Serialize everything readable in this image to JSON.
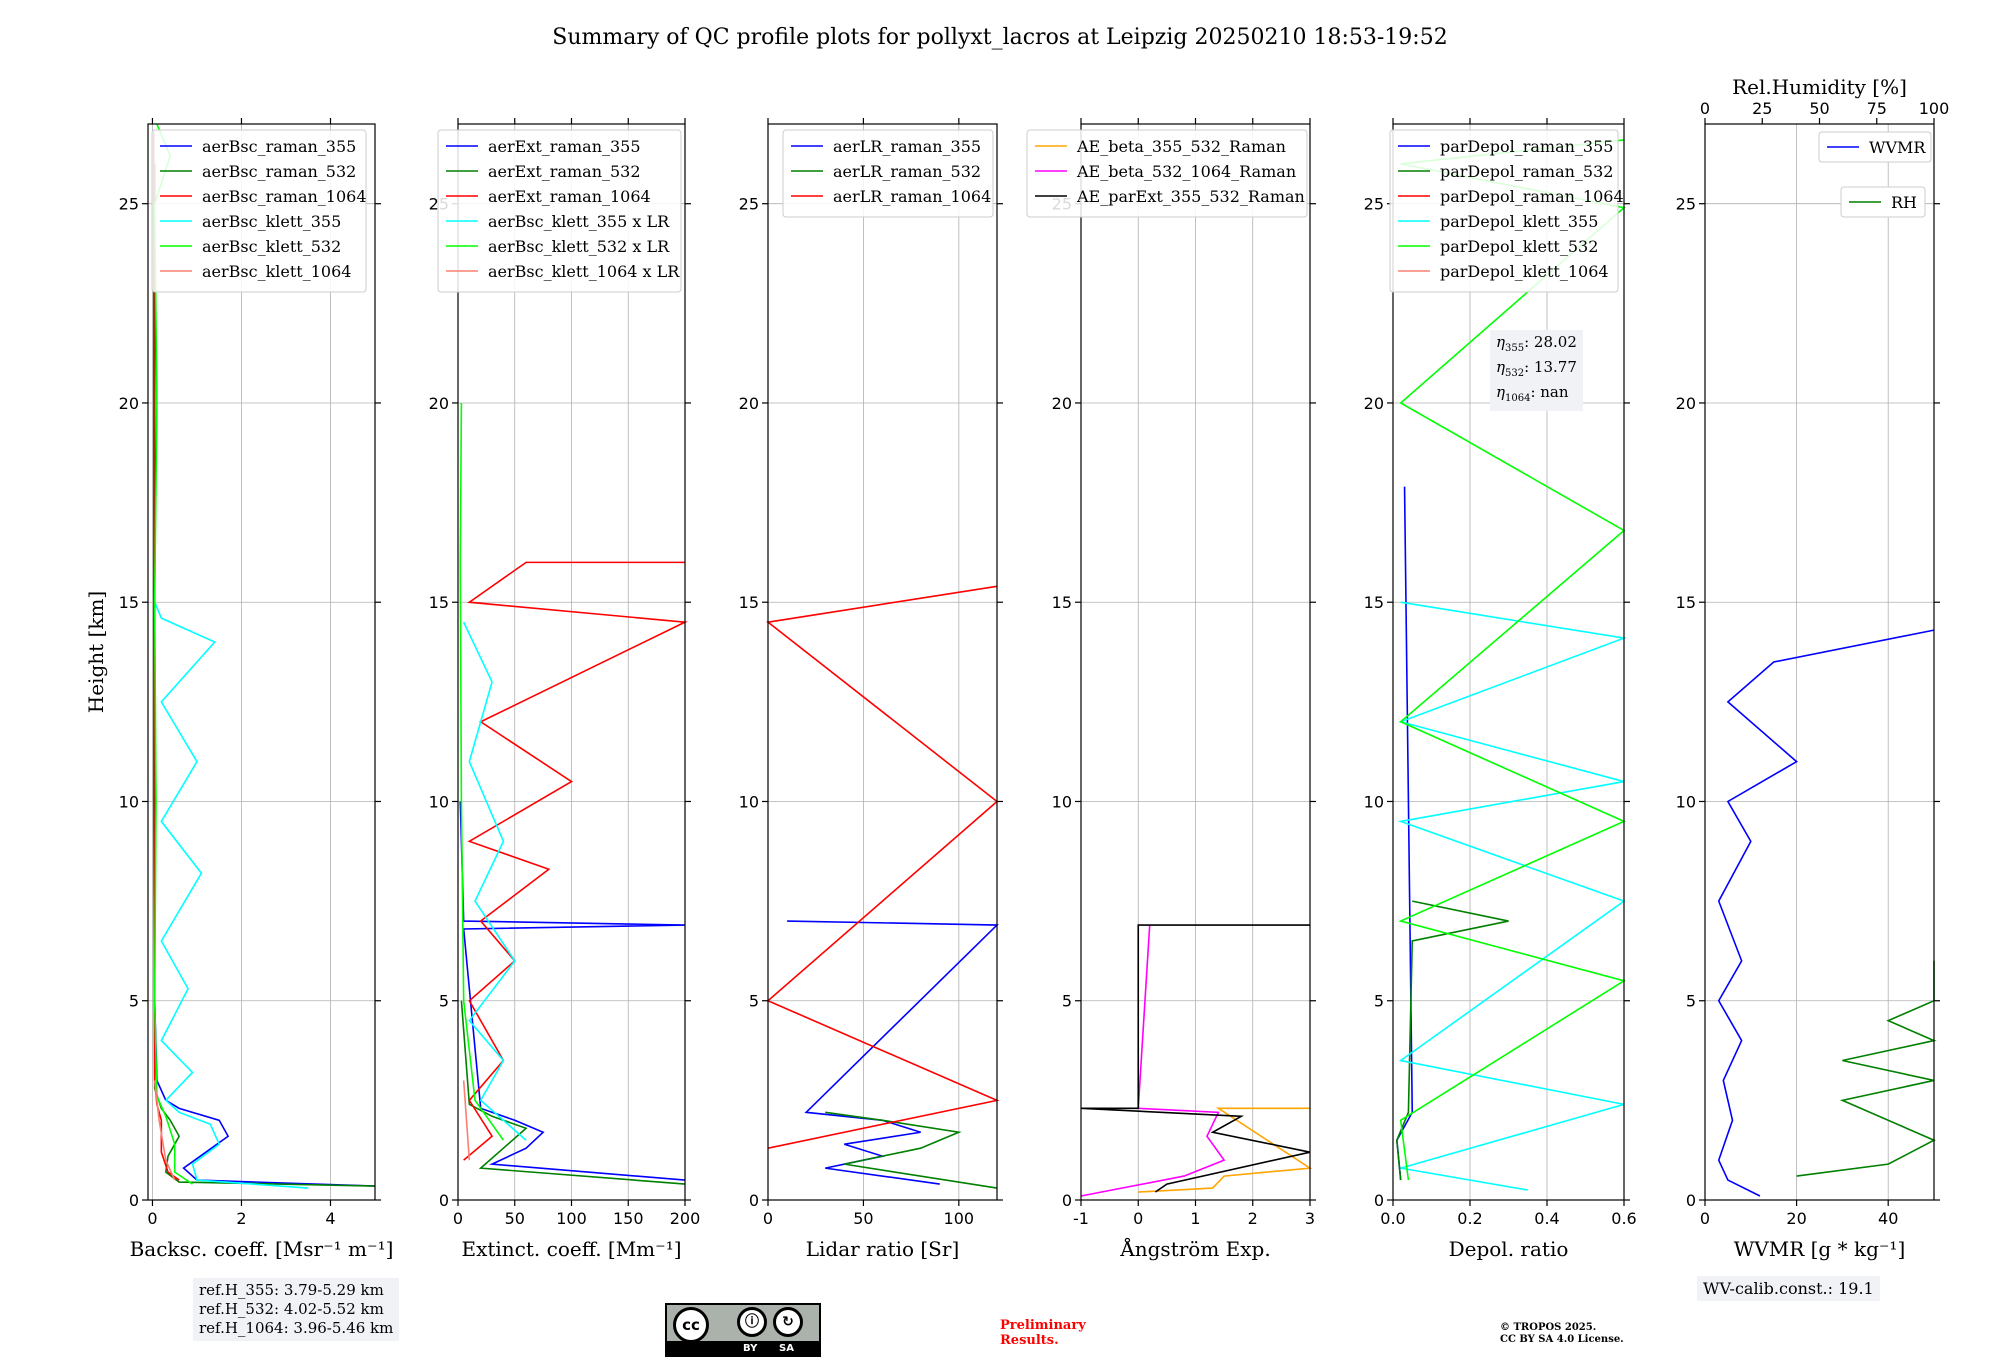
{
  "title": "Summary of QC profile plots for pollyxt_lacros at Leipzig 20250210 18:53-19:52",
  "ylabel": "Height [km]",
  "ref_heights": [
    "ref.H_355: 3.79-5.29 km",
    "ref.H_532: 4.02-5.52 km",
    "ref.H_1064: 3.96-5.46 km"
  ],
  "eta_box": [
    {
      "sym": "η",
      "sub": "355",
      "val": ": 28.02"
    },
    {
      "sym": "η",
      "sub": "532",
      "val": ": 13.77"
    },
    {
      "sym": "η",
      "sub": "1064",
      "val": ": nan"
    }
  ],
  "wv_calib": "WV-calib.const.: 19.1",
  "preliminary": [
    "Preliminary",
    "Results."
  ],
  "copyright": [
    "© TROPOS 2025.",
    "CC BY SA 4.0 License."
  ],
  "license_badge": {
    "by": "BY",
    "sa": "SA"
  },
  "colors": {
    "blue": "#0000ff",
    "green": "#008000",
    "red": "#ff0000",
    "cyan": "#00ffff",
    "lime": "#00ff00",
    "salmon": "#fa8072",
    "orange": "#ffa500",
    "magenta": "#ff00ff",
    "black": "#000000",
    "preliminary": "#ff0000"
  },
  "chart_data": [
    {
      "type": "line",
      "xlabel": "Backsc. coeff. [Msr⁻¹ m⁻¹]",
      "ylabel": "Height [km]",
      "xlim": [
        -0.1,
        5
      ],
      "ylim": [
        0,
        27
      ],
      "xticks": [
        0,
        2,
        4
      ],
      "yticks": [
        0,
        5,
        10,
        15,
        20,
        25
      ],
      "grid": true,
      "legend_placement": "top-right",
      "series": [
        {
          "name": "aerBsc_raman_355",
          "color": "#0000ff",
          "x": [
            5,
            1.0,
            0.7,
            1.2,
            1.7,
            1.5,
            0.6,
            0.3,
            0.1,
            0.05,
            0.05,
            0.05,
            0.05
          ],
          "y": [
            0.35,
            0.5,
            0.8,
            1.2,
            1.6,
            2.0,
            2.3,
            2.5,
            3.0,
            5.0,
            10.0,
            20.0,
            26.0
          ]
        },
        {
          "name": "aerBsc_raman_532",
          "color": "#008000",
          "x": [
            5,
            0.6,
            0.3,
            0.35,
            0.6,
            0.4,
            0.2,
            0.05,
            0.04,
            0.04,
            0.04
          ],
          "y": [
            0.35,
            0.45,
            0.7,
            1.1,
            1.6,
            2.0,
            2.3,
            2.8,
            8.0,
            20.0,
            26.0
          ]
        },
        {
          "name": "aerBsc_raman_1064",
          "color": "#ff0000",
          "x": [
            0.6,
            0.35,
            0.2,
            0.2,
            0.1,
            0.05,
            0.03,
            0.03
          ],
          "y": [
            0.5,
            0.7,
            1.2,
            2.0,
            2.4,
            3.0,
            10.0,
            26.8
          ]
        },
        {
          "name": "aerBsc_klett_355",
          "color": "#00ffff",
          "x": [
            3.5,
            1.0,
            0.9,
            1.5,
            1.3,
            0.6,
            0.3,
            0.9,
            0.2,
            0.8,
            0.2,
            1.1,
            0.2,
            1.0,
            0.2,
            1.4,
            0.2,
            0.05
          ],
          "y": [
            0.3,
            0.5,
            0.9,
            1.4,
            1.9,
            2.2,
            2.5,
            3.2,
            4.0,
            5.3,
            6.5,
            8.2,
            9.5,
            11.0,
            12.5,
            14.0,
            14.6,
            15.0
          ]
        },
        {
          "name": "aerBsc_klett_532",
          "color": "#00ff00",
          "x": [
            0.9,
            0.5,
            0.5,
            0.3,
            0.1,
            0.05,
            0.08,
            0.05,
            0.1,
            0.05,
            0.4,
            0.1
          ],
          "y": [
            0.4,
            0.7,
            1.4,
            2.1,
            2.6,
            5.0,
            10.0,
            15.0,
            20.0,
            25.0,
            26.2,
            27.0
          ]
        },
        {
          "name": "aerBsc_klett_1064",
          "color": "#fa8072",
          "x": [
            0.5,
            0.3,
            0.15,
            0.05
          ],
          "y": [
            0.5,
            1.0,
            2.0,
            3.0
          ]
        }
      ]
    },
    {
      "type": "line",
      "xlabel": "Extinct. coeff. [Mm⁻¹]",
      "xlim": [
        0,
        200
      ],
      "ylim": [
        0,
        27
      ],
      "xticks": [
        0,
        50,
        100,
        150,
        200
      ],
      "yticks": [
        0,
        5,
        10,
        15,
        20,
        25
      ],
      "grid": true,
      "legend_placement": "top-right",
      "series": [
        {
          "name": "aerExt_raman_355",
          "color": "#0000ff",
          "x": [
            200,
            30,
            60,
            75,
            50,
            20,
            5,
            200,
            5,
            2
          ],
          "y": [
            0.5,
            0.9,
            1.3,
            1.7,
            2.0,
            2.3,
            6.8,
            6.9,
            7.0,
            10.0
          ]
        },
        {
          "name": "aerExt_raman_532",
          "color": "#008000",
          "x": [
            200,
            20,
            40,
            60,
            30,
            10,
            3
          ],
          "y": [
            0.4,
            0.8,
            1.3,
            1.8,
            2.1,
            2.4,
            5.0
          ]
        },
        {
          "name": "aerExt_raman_1064",
          "color": "#ff0000",
          "x": [
            5,
            30,
            10,
            40,
            10,
            50,
            20,
            80,
            10,
            100,
            20,
            200,
            10,
            60,
            200
          ],
          "y": [
            1.0,
            1.6,
            2.5,
            3.5,
            5.0,
            6.0,
            7.0,
            8.3,
            9.0,
            10.5,
            12.0,
            14.5,
            15.0,
            16.0,
            16.0
          ]
        },
        {
          "name": "aerBsc_klett_355 x LR",
          "color": "#00ffff",
          "x": [
            60,
            20,
            40,
            10,
            50,
            15,
            40,
            10,
            30,
            5
          ],
          "y": [
            1.5,
            2.5,
            3.5,
            4.5,
            6.0,
            7.5,
            9.0,
            11.0,
            13.0,
            14.5
          ]
        },
        {
          "name": "aerBsc_klett_532 x LR",
          "color": "#00ff00",
          "x": [
            40,
            15,
            5,
            3,
            2,
            3
          ],
          "y": [
            1.5,
            2.5,
            5.0,
            10.0,
            16.0,
            20.0
          ]
        },
        {
          "name": "aerBsc_klett_1064 x LR",
          "color": "#fa8072",
          "x": [
            10,
            5
          ],
          "y": [
            1.0,
            3.0
          ]
        }
      ]
    },
    {
      "type": "line",
      "xlabel": "Lidar ratio [Sr]",
      "xlim": [
        0,
        120
      ],
      "ylim": [
        0,
        27
      ],
      "xticks": [
        0,
        50,
        100
      ],
      "yticks": [
        0,
        5,
        10,
        15,
        20,
        25
      ],
      "grid": true,
      "legend_placement": "top-right",
      "series": [
        {
          "name": "aerLR_raman_355",
          "color": "#0000ff",
          "x": [
            90,
            30,
            60,
            40,
            80,
            60,
            20,
            120,
            10
          ],
          "y": [
            0.4,
            0.8,
            1.1,
            1.4,
            1.7,
            2.0,
            2.2,
            6.9,
            7.0
          ]
        },
        {
          "name": "aerLR_raman_532",
          "color": "#008000",
          "x": [
            120,
            40,
            80,
            100,
            60,
            30
          ],
          "y": [
            0.3,
            0.9,
            1.3,
            1.7,
            2.0,
            2.2
          ]
        },
        {
          "name": "aerLR_raman_1064",
          "color": "#ff0000",
          "x": [
            0,
            120,
            0,
            120,
            0,
            120
          ],
          "y": [
            1.3,
            2.5,
            5.0,
            10.0,
            14.5,
            15.4
          ]
        }
      ]
    },
    {
      "type": "line",
      "xlabel": "Ångström Exp.",
      "xlim": [
        -1,
        3
      ],
      "ylim": [
        0,
        27
      ],
      "xticks": [
        -1,
        0,
        1,
        2,
        3
      ],
      "yticks": [
        0,
        5,
        10,
        15,
        20,
        25
      ],
      "grid": true,
      "legend_placement": "top-right",
      "series": [
        {
          "name": "AE_beta_355_532_Raman",
          "color": "#ffa500",
          "x": [
            0,
            1.3,
            1.5,
            3.0,
            1.4,
            3.0
          ],
          "y": [
            0.2,
            0.3,
            0.6,
            0.8,
            2.3,
            2.3
          ]
        },
        {
          "name": "AE_beta_532_1064_Raman",
          "color": "#ff00ff",
          "x": [
            -1,
            0.8,
            1.5,
            1.2,
            1.4,
            0,
            0.2
          ],
          "y": [
            0.1,
            0.6,
            1.0,
            1.6,
            2.2,
            2.3,
            6.9
          ]
        },
        {
          "name": "AE_parExt_355_532_Raman",
          "color": "#000000",
          "x": [
            0.3,
            0.5,
            3.0,
            1.3,
            1.8,
            -1,
            0,
            0,
            3.0
          ],
          "y": [
            0.2,
            0.4,
            1.2,
            1.7,
            2.1,
            2.3,
            2.3,
            6.9,
            6.9
          ]
        }
      ]
    },
    {
      "type": "line",
      "xlabel": "Depol. ratio",
      "xlim": [
        0,
        0.6
      ],
      "ylim": [
        0,
        27
      ],
      "xticks": [
        0.0,
        0.2,
        0.4,
        0.6
      ],
      "yticks": [
        0,
        5,
        10,
        15,
        20,
        25
      ],
      "grid": true,
      "legend_placement": "top-left",
      "series": [
        {
          "name": "parDepol_raman_355",
          "color": "#0000ff",
          "x": [
            0.02,
            0.01,
            0.05,
            0.03
          ],
          "y": [
            0.5,
            1.5,
            2.2,
            17.9
          ]
        },
        {
          "name": "parDepol_raman_532",
          "color": "#008000",
          "x": [
            0.02,
            0.01,
            0.04,
            0.05,
            0.3,
            0.05
          ],
          "y": [
            0.5,
            1.5,
            2.2,
            6.5,
            7.0,
            7.5
          ]
        },
        {
          "name": "parDepol_raman_1064",
          "color": "#ff0000",
          "x": [],
          "y": []
        },
        {
          "name": "parDepol_klett_355",
          "color": "#00ffff",
          "x": [
            0.35,
            0.02,
            0.6,
            0.02,
            0.6,
            0.02,
            0.6,
            0.02,
            0.6,
            0.02
          ],
          "y": [
            0.25,
            0.8,
            2.4,
            3.5,
            7.5,
            9.5,
            10.5,
            12.0,
            14.1,
            15.0
          ]
        },
        {
          "name": "parDepol_klett_532",
          "color": "#00ff00",
          "x": [
            0.04,
            0.02,
            0.6,
            0.02,
            0.6,
            0.02,
            0.6,
            0.02,
            0.6,
            0.02,
            0.6
          ],
          "y": [
            0.5,
            2.0,
            5.5,
            7.0,
            9.5,
            12.0,
            16.8,
            20.0,
            24.9,
            26.0,
            26.6
          ]
        },
        {
          "name": "parDepol_klett_1064",
          "color": "#fa8072",
          "x": [],
          "y": []
        }
      ]
    },
    {
      "type": "line",
      "xlabel": "WVMR [g * kg⁻¹]",
      "xlabel_top": "Rel.Humidity [%]",
      "xlim": [
        0,
        50
      ],
      "xlim_top": [
        0,
        100
      ],
      "ylim": [
        0,
        27
      ],
      "xticks": [
        0,
        20,
        40
      ],
      "xticks_top": [
        0,
        25,
        50,
        75,
        100
      ],
      "yticks": [
        0,
        5,
        10,
        15,
        20,
        25
      ],
      "grid": true,
      "legend_placement": "top-right",
      "series": [
        {
          "name": "WVMR",
          "color": "#0000ff",
          "x": [
            12,
            5,
            3,
            6,
            4,
            8,
            3,
            8,
            3,
            10,
            5,
            20,
            5,
            15,
            50
          ],
          "y": [
            0.1,
            0.5,
            1.0,
            2.0,
            3.0,
            4.0,
            5.0,
            6.0,
            7.5,
            9.0,
            10.0,
            11.0,
            12.5,
            13.5,
            14.3
          ]
        },
        {
          "name": "RH",
          "color": "#008000",
          "x": [
            20,
            40,
            50,
            30,
            50,
            30,
            50,
            40,
            50,
            50
          ],
          "y": [
            0.6,
            0.9,
            1.5,
            2.5,
            3.0,
            3.5,
            4.0,
            4.5,
            5.0,
            6.0
          ]
        }
      ]
    }
  ]
}
